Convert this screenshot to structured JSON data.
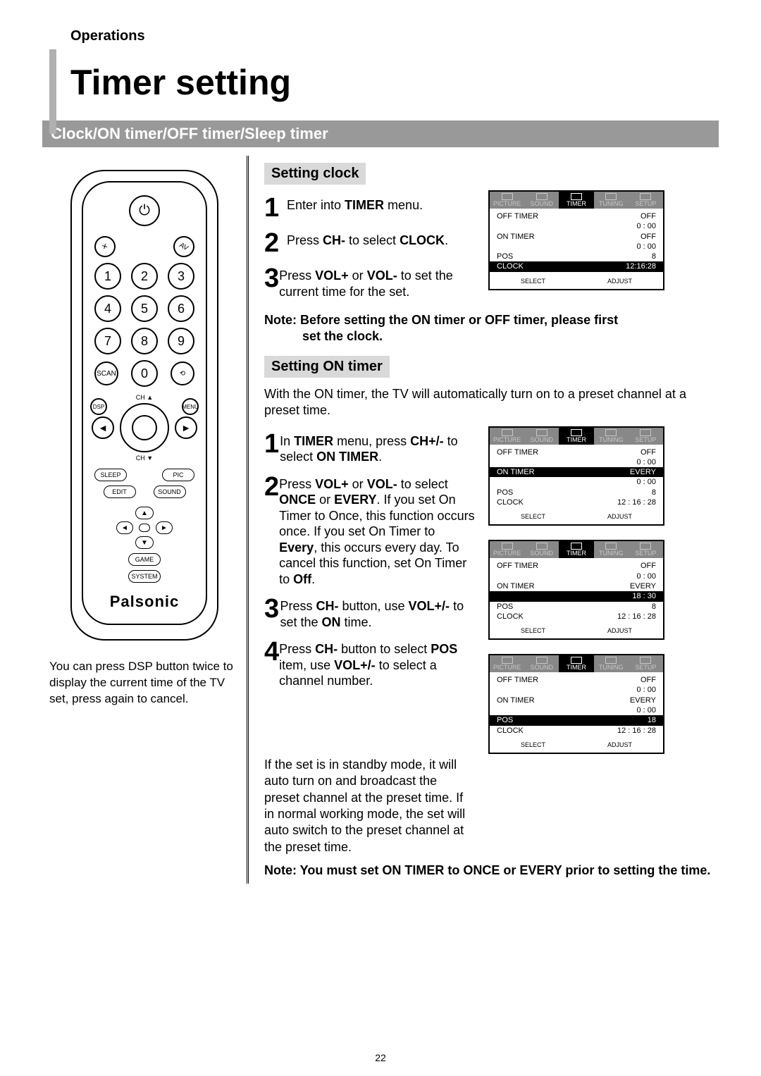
{
  "header": {
    "section": "Operations",
    "title": "Timer setting",
    "subtitle": "Clock/ON timer/OFF timer/Sleep timer"
  },
  "pageNumber": "22",
  "remote": {
    "brand": "Palsonic",
    "buttons": {
      "mute": "✕",
      "av": "AV",
      "scan": "SCAN",
      "loop": "⟲",
      "dsp": "DSP",
      "menu": "MENU",
      "ch_up": "CH ▲",
      "ch_dn": "CH ▼",
      "vol_l": "VOL ◄",
      "vol_r": "VOL ►",
      "sleep": "SLEEP",
      "pic": "PIC",
      "edit": "EDIT",
      "sound": "SOUND",
      "game": "GAME",
      "system": "SYSTEM"
    },
    "caption": "You can press DSP button twice to display the current time of the TV set, press again to cancel."
  },
  "settingClock": {
    "heading": "Setting clock",
    "steps": [
      {
        "n": "1",
        "html": "Enter into <b>TIMER</b> menu."
      },
      {
        "n": "2",
        "html": "Press <b>CH-</b> to select <b>CLOCK</b>."
      },
      {
        "n": "3",
        "html": "Press <b>VOL+</b> or <b>VOL-</b> to set the current time for the set."
      }
    ],
    "note": "Note: Before setting the ON timer or OFF timer, please first set the clock."
  },
  "settingOn": {
    "heading": "Setting ON timer",
    "intro": "With the ON timer, the TV will automatically turn on to a preset channel at a preset time.",
    "steps": [
      {
        "n": "1",
        "html": "In <b>TIMER</b> menu, press <b>CH+/-</b> to select <b>ON TIMER</b>."
      },
      {
        "n": "2",
        "html": "Press <b>VOL+</b> or <b>VOL-</b> to select <b>ONCE</b> or <b>EVERY</b>. If you set On Timer to Once, this function occurs once. If you set On Timer to <b>Every</b>, this occurs every day. To cancel this function, set On Timer to <b>Off</b>."
      },
      {
        "n": "3",
        "html": "Press <b>CH-</b> button, use <b>VOL+/-</b> to set the <b>ON</b> time."
      },
      {
        "n": "4",
        "html": "Press <b>CH-</b> button to select <b>POS</b> item, use <b>VOL+/-</b> to select a channel number."
      }
    ],
    "standby": "If the set is in standby mode, it will auto turn on and broadcast the preset channel at the preset time. If in normal working mode, the set will auto switch to the preset channel at the preset time.",
    "note": "Note: You must set ON TIMER to ONCE or EVERY prior to setting the time."
  },
  "osd": {
    "tabs": [
      "PICTURE",
      "SOUND",
      "TIMER",
      "TUNING",
      "SETUP"
    ],
    "foot": {
      "select": "SELECT",
      "adjust": "ADJUST"
    },
    "screens": [
      {
        "id": "clock",
        "lines": [
          {
            "l": "OFF TIMER",
            "r": "OFF"
          },
          {
            "sub": "0 : 00"
          },
          {
            "l": "ON TIMER",
            "r": "OFF"
          },
          {
            "sub": "0 : 00"
          },
          {
            "l": "POS",
            "r": "8"
          },
          {
            "l": "CLOCK",
            "r": "12:16:28",
            "hl": true
          }
        ]
      },
      {
        "id": "ontimer",
        "lines": [
          {
            "l": "OFF TIMER",
            "r": "OFF"
          },
          {
            "sub": "0 : 00"
          },
          {
            "l": "ON TIMER",
            "r": "EVERY",
            "hl": true
          },
          {
            "sub": "0 : 00"
          },
          {
            "l": "POS",
            "r": "8"
          },
          {
            "l": "CLOCK",
            "r": "12 : 16 : 28"
          }
        ]
      },
      {
        "id": "ontime",
        "lines": [
          {
            "l": "OFF TIMER",
            "r": "OFF"
          },
          {
            "sub": "0 : 00"
          },
          {
            "l": "ON TIMER",
            "r": "EVERY"
          },
          {
            "sub": "18 : 30",
            "hl": true
          },
          {
            "l": "POS",
            "r": "8"
          },
          {
            "l": "CLOCK",
            "r": "12 : 16 : 28"
          }
        ]
      },
      {
        "id": "pos",
        "lines": [
          {
            "l": "OFF TIMER",
            "r": "OFF"
          },
          {
            "sub": "0 : 00"
          },
          {
            "l": "ON TIMER",
            "r": "EVERY"
          },
          {
            "sub": "0 : 00"
          },
          {
            "l": "POS",
            "r": "18",
            "hl": true
          },
          {
            "l": "CLOCK",
            "r": "12 : 16 : 28"
          }
        ]
      }
    ]
  }
}
